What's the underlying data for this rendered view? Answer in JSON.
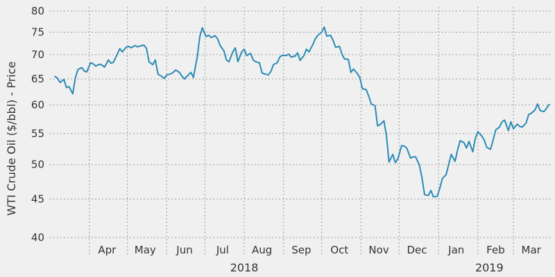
{
  "chart_data": {
    "type": "line",
    "ylabel": "WTI Crude Oil ($/bbl) - Price",
    "y_scale": "log",
    "ylim": [
      40,
      80
    ],
    "y_ticks": [
      40,
      45,
      50,
      55,
      60,
      65,
      70,
      75,
      80
    ],
    "xlim": [
      "2018-03-01",
      "2019-03-31"
    ],
    "x_month_labels": [
      {
        "label": "Apr",
        "date": "2018-04-15"
      },
      {
        "label": "May",
        "date": "2018-05-15"
      },
      {
        "label": "Jun",
        "date": "2018-06-15"
      },
      {
        "label": "Jul",
        "date": "2018-07-15"
      },
      {
        "label": "Aug",
        "date": "2018-08-15"
      },
      {
        "label": "Sep",
        "date": "2018-09-15"
      },
      {
        "label": "Oct",
        "date": "2018-10-15"
      },
      {
        "label": "Nov",
        "date": "2018-11-15"
      },
      {
        "label": "Dec",
        "date": "2018-12-15"
      },
      {
        "label": "Jan",
        "date": "2019-01-15"
      },
      {
        "label": "Feb",
        "date": "2019-02-15"
      },
      {
        "label": "Mar",
        "date": "2019-03-15"
      }
    ],
    "x_gridlines": [
      "2018-04-01",
      "2018-05-01",
      "2018-06-01",
      "2018-07-01",
      "2018-08-01",
      "2018-09-01",
      "2018-10-01",
      "2018-11-01",
      "2018-12-01",
      "2019-01-01",
      "2019-02-01",
      "2019-03-01"
    ],
    "x_year_labels": [
      {
        "label": "2018",
        "date": "2018-08-01"
      },
      {
        "label": "2019",
        "date": "2019-02-10"
      }
    ],
    "grid": true,
    "color": "#2a8ab5",
    "series": [
      {
        "points": [
          [
            "2018-03-05",
            65.5
          ],
          [
            "2018-03-07",
            65.1
          ],
          [
            "2018-03-09",
            64.3
          ],
          [
            "2018-03-12",
            64.9
          ],
          [
            "2018-03-14",
            63.3
          ],
          [
            "2018-03-16",
            63.5
          ],
          [
            "2018-03-19",
            62.1
          ],
          [
            "2018-03-21",
            65.2
          ],
          [
            "2018-03-23",
            66.9
          ],
          [
            "2018-03-26",
            67.3
          ],
          [
            "2018-03-28",
            66.6
          ],
          [
            "2018-03-30",
            66.4
          ],
          [
            "2018-04-02",
            68.3
          ],
          [
            "2018-04-04",
            68.1
          ],
          [
            "2018-04-06",
            67.6
          ],
          [
            "2018-04-09",
            68.0
          ],
          [
            "2018-04-11",
            67.8
          ],
          [
            "2018-04-13",
            67.4
          ],
          [
            "2018-04-16",
            68.9
          ],
          [
            "2018-04-18",
            68.2
          ],
          [
            "2018-04-20",
            68.4
          ],
          [
            "2018-04-23",
            70.1
          ],
          [
            "2018-04-25",
            71.3
          ],
          [
            "2018-04-27",
            70.6
          ],
          [
            "2018-04-30",
            71.6
          ],
          [
            "2018-05-02",
            71.8
          ],
          [
            "2018-05-04",
            71.5
          ],
          [
            "2018-05-07",
            72.0
          ],
          [
            "2018-05-09",
            71.7
          ],
          [
            "2018-05-11",
            71.9
          ],
          [
            "2018-05-14",
            72.1
          ],
          [
            "2018-05-16",
            71.4
          ],
          [
            "2018-05-18",
            68.5
          ],
          [
            "2018-05-21",
            67.9
          ],
          [
            "2018-05-23",
            68.9
          ],
          [
            "2018-05-25",
            66.0
          ],
          [
            "2018-05-28",
            65.5
          ],
          [
            "2018-05-30",
            65.1
          ],
          [
            "2018-06-01",
            65.8
          ],
          [
            "2018-06-04",
            66.0
          ],
          [
            "2018-06-06",
            66.3
          ],
          [
            "2018-06-08",
            66.8
          ],
          [
            "2018-06-11",
            66.3
          ],
          [
            "2018-06-13",
            65.5
          ],
          [
            "2018-06-15",
            65.0
          ],
          [
            "2018-06-18",
            65.8
          ],
          [
            "2018-06-20",
            66.3
          ],
          [
            "2018-06-22",
            65.3
          ],
          [
            "2018-06-25",
            69.5
          ],
          [
            "2018-06-27",
            74.0
          ],
          [
            "2018-06-29",
            76.0
          ],
          [
            "2018-07-02",
            74.0
          ],
          [
            "2018-07-04",
            74.3
          ],
          [
            "2018-07-06",
            73.8
          ],
          [
            "2018-07-09",
            74.2
          ],
          [
            "2018-07-11",
            73.5
          ],
          [
            "2018-07-13",
            72.0
          ],
          [
            "2018-07-16",
            70.8
          ],
          [
            "2018-07-18",
            68.9
          ],
          [
            "2018-07-20",
            68.5
          ],
          [
            "2018-07-23",
            70.6
          ],
          [
            "2018-07-25",
            71.5
          ],
          [
            "2018-07-27",
            68.5
          ],
          [
            "2018-07-30",
            70.6
          ],
          [
            "2018-08-01",
            71.2
          ],
          [
            "2018-08-03",
            69.8
          ],
          [
            "2018-08-06",
            70.3
          ],
          [
            "2018-08-08",
            68.9
          ],
          [
            "2018-08-10",
            68.5
          ],
          [
            "2018-08-13",
            68.3
          ],
          [
            "2018-08-15",
            66.2
          ],
          [
            "2018-08-17",
            66.0
          ],
          [
            "2018-08-20",
            65.8
          ],
          [
            "2018-08-22",
            66.5
          ],
          [
            "2018-08-24",
            67.9
          ],
          [
            "2018-08-27",
            68.3
          ],
          [
            "2018-08-29",
            69.5
          ],
          [
            "2018-08-31",
            69.9
          ],
          [
            "2018-09-03",
            69.8
          ],
          [
            "2018-09-05",
            70.1
          ],
          [
            "2018-09-07",
            69.5
          ],
          [
            "2018-09-10",
            69.7
          ],
          [
            "2018-09-12",
            70.4
          ],
          [
            "2018-09-14",
            68.8
          ],
          [
            "2018-09-17",
            69.8
          ],
          [
            "2018-09-19",
            71.2
          ],
          [
            "2018-09-21",
            70.6
          ],
          [
            "2018-09-24",
            72.2
          ],
          [
            "2018-09-26",
            73.5
          ],
          [
            "2018-09-28",
            74.3
          ],
          [
            "2018-10-01",
            75.0
          ],
          [
            "2018-10-03",
            76.2
          ],
          [
            "2018-10-05",
            74.1
          ],
          [
            "2018-10-08",
            74.3
          ],
          [
            "2018-10-10",
            73.1
          ],
          [
            "2018-10-12",
            71.6
          ],
          [
            "2018-10-15",
            71.8
          ],
          [
            "2018-10-17",
            70.1
          ],
          [
            "2018-10-19",
            69.1
          ],
          [
            "2018-10-22",
            69.0
          ],
          [
            "2018-10-24",
            66.3
          ],
          [
            "2018-10-26",
            67.0
          ],
          [
            "2018-10-29",
            66.1
          ],
          [
            "2018-10-31",
            65.3
          ],
          [
            "2018-11-02",
            63.1
          ],
          [
            "2018-11-05",
            62.9
          ],
          [
            "2018-11-07",
            61.7
          ],
          [
            "2018-11-09",
            60.2
          ],
          [
            "2018-11-12",
            59.9
          ],
          [
            "2018-11-14",
            56.3
          ],
          [
            "2018-11-16",
            56.5
          ],
          [
            "2018-11-19",
            57.2
          ],
          [
            "2018-11-21",
            54.6
          ],
          [
            "2018-11-23",
            50.4
          ],
          [
            "2018-11-26",
            51.6
          ],
          [
            "2018-11-28",
            50.3
          ],
          [
            "2018-11-30",
            50.9
          ],
          [
            "2018-12-03",
            53.0
          ],
          [
            "2018-12-05",
            52.9
          ],
          [
            "2018-12-07",
            52.6
          ],
          [
            "2018-12-10",
            51.0
          ],
          [
            "2018-12-12",
            51.2
          ],
          [
            "2018-12-14",
            51.2
          ],
          [
            "2018-12-17",
            49.9
          ],
          [
            "2018-12-19",
            48.0
          ],
          [
            "2018-12-21",
            45.6
          ],
          [
            "2018-12-24",
            45.5
          ],
          [
            "2018-12-26",
            46.2
          ],
          [
            "2018-12-28",
            45.3
          ],
          [
            "2018-12-31",
            45.4
          ],
          [
            "2019-01-02",
            46.5
          ],
          [
            "2019-01-04",
            47.9
          ],
          [
            "2019-01-07",
            48.5
          ],
          [
            "2019-01-09",
            50.0
          ],
          [
            "2019-01-11",
            51.6
          ],
          [
            "2019-01-14",
            50.5
          ],
          [
            "2019-01-16",
            52.3
          ],
          [
            "2019-01-18",
            53.8
          ],
          [
            "2019-01-21",
            53.5
          ],
          [
            "2019-01-23",
            52.6
          ],
          [
            "2019-01-25",
            53.7
          ],
          [
            "2019-01-28",
            52.0
          ],
          [
            "2019-01-30",
            54.2
          ],
          [
            "2019-02-01",
            55.3
          ],
          [
            "2019-02-04",
            54.6
          ],
          [
            "2019-02-06",
            53.9
          ],
          [
            "2019-02-08",
            52.7
          ],
          [
            "2019-02-11",
            52.4
          ],
          [
            "2019-02-13",
            53.9
          ],
          [
            "2019-02-15",
            55.6
          ],
          [
            "2019-02-18",
            56.1
          ],
          [
            "2019-02-20",
            57.0
          ],
          [
            "2019-02-22",
            57.3
          ],
          [
            "2019-02-25",
            55.5
          ],
          [
            "2019-02-27",
            57.0
          ],
          [
            "2019-03-01",
            55.8
          ],
          [
            "2019-03-04",
            56.6
          ],
          [
            "2019-03-06",
            56.2
          ],
          [
            "2019-03-08",
            56.1
          ],
          [
            "2019-03-11",
            56.8
          ],
          [
            "2019-03-13",
            58.3
          ],
          [
            "2019-03-15",
            58.5
          ],
          [
            "2019-03-18",
            59.1
          ],
          [
            "2019-03-20",
            60.2
          ],
          [
            "2019-03-22",
            59.0
          ],
          [
            "2019-03-25",
            58.8
          ],
          [
            "2019-03-27",
            59.4
          ],
          [
            "2019-03-29",
            60.1
          ]
        ]
      }
    ]
  }
}
